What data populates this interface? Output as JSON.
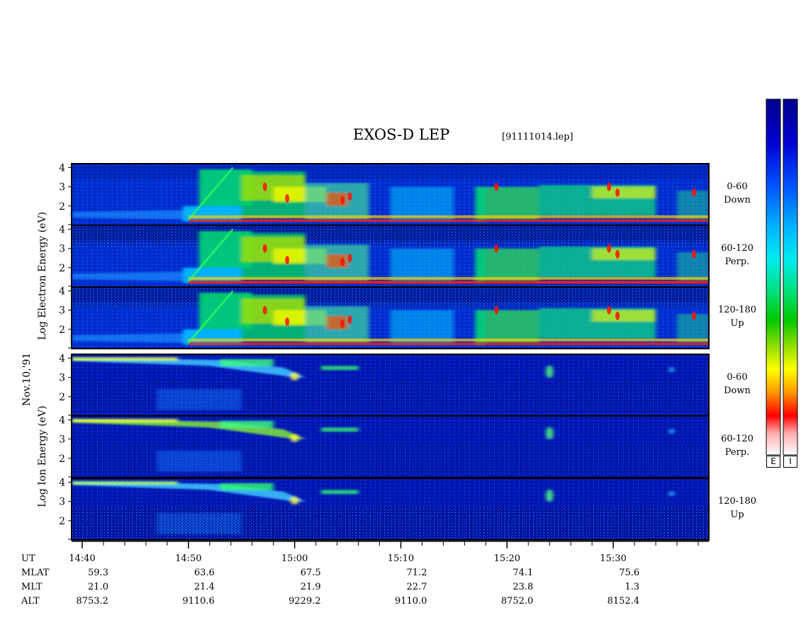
{
  "title": "EXOS-D LEP",
  "file": "[91111014.lep]",
  "date_label": "Nov.10,'91",
  "colorbar": {
    "labels": [
      "E",
      "I"
    ],
    "stops": [
      "#00008b",
      "#0000c8",
      "#0044ff",
      "#0099ff",
      "#00e5ff",
      "#00e6a0",
      "#00cc00",
      "#80e000",
      "#ffff00",
      "#ffaa00",
      "#ff0000",
      "#ffc8c8",
      "#ffffff"
    ]
  },
  "chart_data": {
    "type": "heatmap",
    "ylabel_electron": "Log  Electron  Energy  (eV)",
    "ylabel_ion": "Log  Ion  Energy  (eV)",
    "y_ticks": [
      "4",
      "3",
      "2"
    ],
    "ylim": [
      1,
      4.2
    ],
    "x_ticks": [
      "14:40",
      "14:50",
      "15:00",
      "15:10",
      "15:20",
      "15:30"
    ],
    "xlim": [
      "14:39",
      "15:39"
    ],
    "panels": [
      {
        "species": "Electron",
        "pitch_angle": "0-60",
        "direction": "Down"
      },
      {
        "species": "Electron",
        "pitch_angle": "60-120",
        "direction": "Perp."
      },
      {
        "species": "Electron",
        "pitch_angle": "120-180",
        "direction": "Up"
      },
      {
        "species": "Ion",
        "pitch_angle": "0-60",
        "direction": "Down"
      },
      {
        "species": "Ion",
        "pitch_angle": "60-120",
        "direction": "Perp."
      },
      {
        "species": "Ion",
        "pitch_angle": "120-180",
        "direction": "Up"
      }
    ]
  },
  "ephemeris": {
    "rows": [
      {
        "label": "UT",
        "values": [
          "14:40",
          "14:50",
          "15:00",
          "15:10",
          "15:20",
          "15:30"
        ]
      },
      {
        "label": "MLAT",
        "values": [
          "59.3",
          "63.6",
          "67.5",
          "71.2",
          "74.1",
          "75.6"
        ]
      },
      {
        "label": "MLT",
        "values": [
          "21.0",
          "21.4",
          "21.9",
          "22.7",
          "23.8",
          "1.3"
        ]
      },
      {
        "label": "ALT",
        "values": [
          "8753.2",
          "9110.6",
          "9229.2",
          "9110.0",
          "8752.0",
          "8152.4"
        ]
      }
    ]
  }
}
